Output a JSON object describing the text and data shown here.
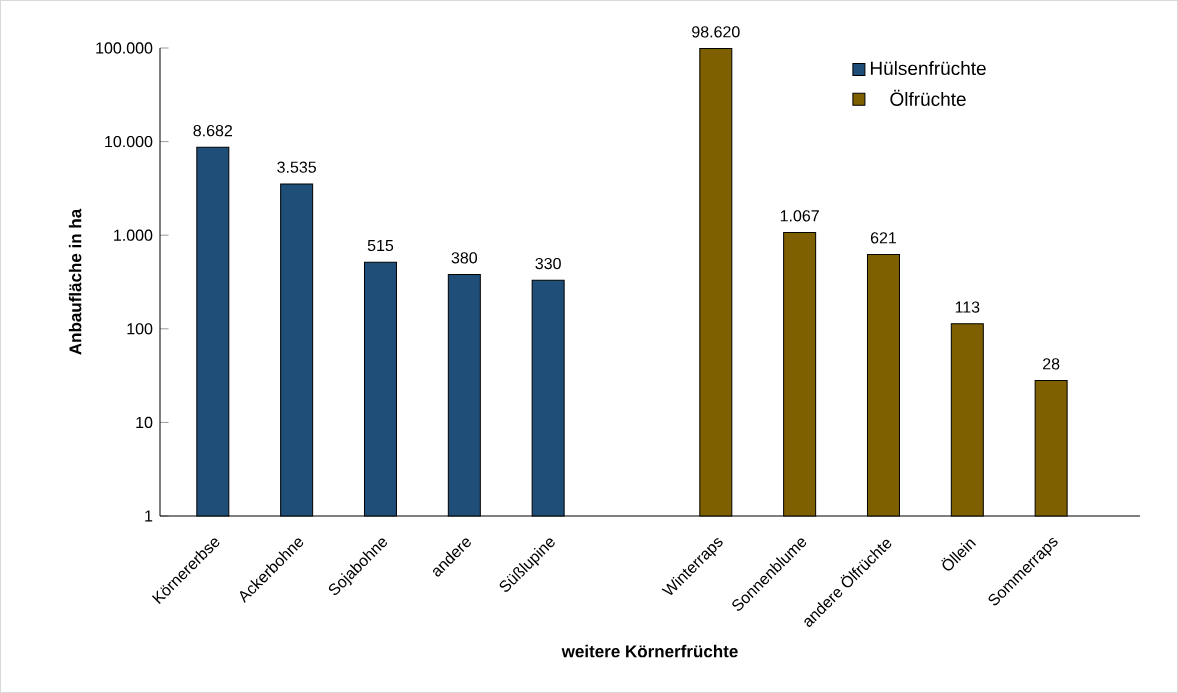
{
  "chart_data": {
    "type": "bar",
    "xlabel": "weitere Körnerfrüchte",
    "ylabel": "Anbaufläche in ha",
    "categories": [
      "Körnererbse",
      "Ackerbohne",
      "Sojabohne",
      "andere",
      "Süßlupine",
      null,
      "Winterraps",
      "Sonnenblume",
      "andere Ölfrüchte",
      "Öllein",
      "Sommerraps"
    ],
    "series": [
      {
        "name": "Hülsenfrüchte",
        "color": "#1f4e79",
        "values": [
          8682,
          3535,
          515,
          380,
          330,
          null,
          null,
          null,
          null,
          null,
          null
        ],
        "value_labels": [
          "8.682",
          "3.535",
          "515",
          "380",
          "330",
          null,
          null,
          null,
          null,
          null,
          null
        ]
      },
      {
        "name": "Ölfrüchte",
        "color": "#7f6000",
        "values": [
          null,
          null,
          null,
          null,
          null,
          null,
          98620,
          1067,
          621,
          113,
          28
        ],
        "value_labels": [
          null,
          null,
          null,
          null,
          null,
          null,
          "98.620",
          "1.067",
          "621",
          "113",
          "28"
        ]
      }
    ],
    "log": "y",
    "ylim": [
      1,
      100000
    ],
    "yticks": [
      1,
      10,
      {
        "value": 100,
        "label": "100"
      },
      {
        "value": 1000,
        "label": "1.000"
      },
      {
        "value": 10000,
        "label": "10.000"
      },
      {
        "value": 100000,
        "label": "100.000"
      }
    ],
    "legend": "top right",
    "grid": false
  }
}
